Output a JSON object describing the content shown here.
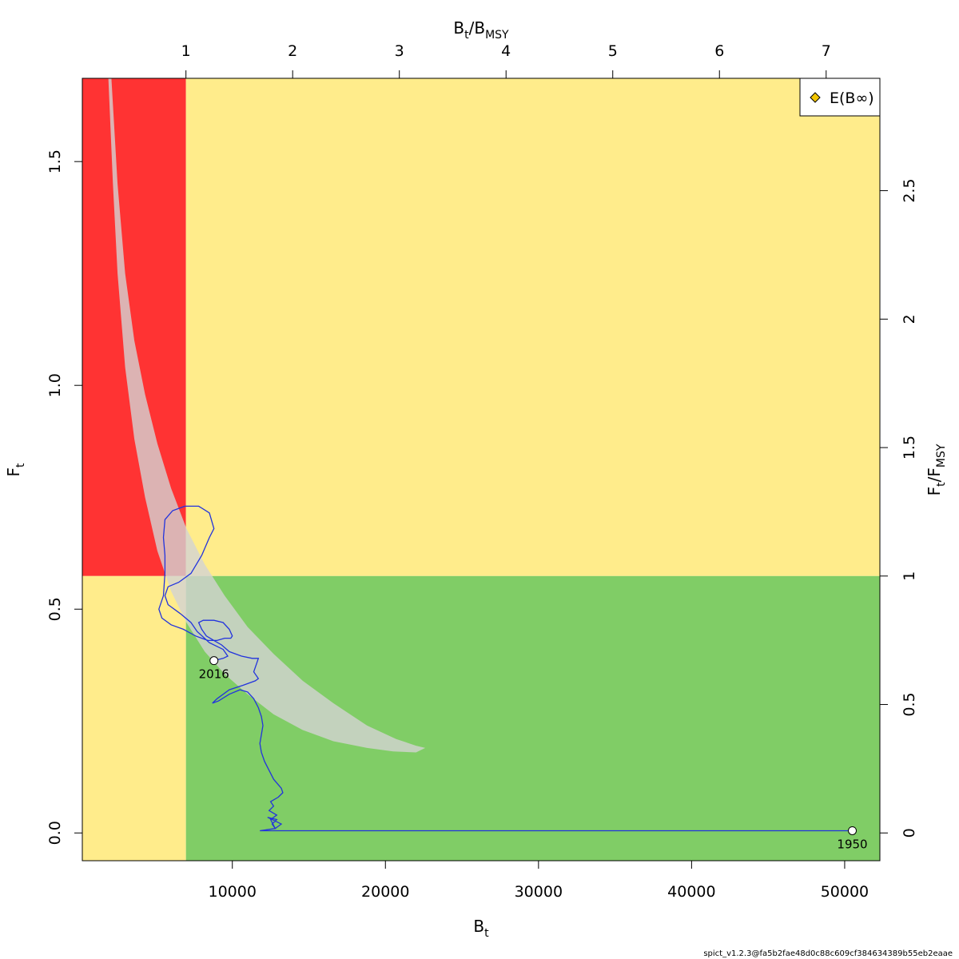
{
  "chart_data": {
    "type": "line",
    "title": "",
    "xlabel": "B_t",
    "ylabel": "F_t",
    "x_axis_label": {
      "main": "B",
      "sub": "t"
    },
    "y_axis_label": {
      "main": "F",
      "sub": "t"
    },
    "top_axis_label": {
      "main1": "B",
      "sub1": "t",
      "slash": "/",
      "main2": "B",
      "sub2": "MSY"
    },
    "right_axis_label": {
      "main1": "F",
      "sub1": "t",
      "slash": "/",
      "main2": "F",
      "sub2": "MSY"
    },
    "xlim": [
      200,
      52300
    ],
    "ylim": [
      -0.062,
      1.686
    ],
    "x_ticks": [
      10000,
      20000,
      30000,
      40000,
      50000
    ],
    "x_tick_labels": [
      "10000",
      "20000",
      "30000",
      "40000",
      "50000"
    ],
    "y_ticks": [
      0.0,
      0.5,
      1.0,
      1.5
    ],
    "y_tick_labels": [
      "0.0",
      "0.5",
      "1.0",
      "1.5"
    ],
    "bmsy": 6970,
    "fmsy": 0.574,
    "top_ticks": [
      1,
      2,
      3,
      4,
      5,
      6,
      7
    ],
    "top_tick_labels": [
      "1",
      "2",
      "3",
      "4",
      "5",
      "6",
      "7"
    ],
    "right_ticks": [
      0,
      0.5,
      1,
      1.5,
      2,
      2.5
    ],
    "right_tick_labels": [
      "0",
      "0.5",
      "1",
      "1.5",
      "2",
      "2.5"
    ],
    "grid": false,
    "legend": {
      "position": "top-right",
      "entries": [
        {
          "name": "E(B∞)",
          "marker": "diamond",
          "color": "#f2c500"
        }
      ]
    },
    "zones": {
      "red": "#ff3333",
      "yellow": "#ffec8b",
      "green": "#80cd66"
    },
    "confidence_region": {
      "color": "#d3d3d3",
      "opacity": 0.8,
      "outer": [
        [
          2100,
          1.686
        ],
        [
          2500,
          1.45
        ],
        [
          3000,
          1.25
        ],
        [
          3600,
          1.1
        ],
        [
          4300,
          0.98
        ],
        [
          5100,
          0.87
        ],
        [
          6000,
          0.77
        ],
        [
          7000,
          0.68
        ],
        [
          8200,
          0.6
        ],
        [
          9500,
          0.53
        ],
        [
          11000,
          0.46
        ],
        [
          12700,
          0.4
        ],
        [
          14600,
          0.34
        ],
        [
          16600,
          0.29
        ],
        [
          18800,
          0.24
        ],
        [
          20700,
          0.21
        ],
        [
          22000,
          0.195
        ],
        [
          22600,
          0.19
        ]
      ],
      "inner": [
        [
          22000,
          0.18
        ],
        [
          20500,
          0.182
        ],
        [
          18800,
          0.19
        ],
        [
          16600,
          0.205
        ],
        [
          14600,
          0.23
        ],
        [
          12700,
          0.265
        ],
        [
          11000,
          0.31
        ],
        [
          9500,
          0.355
        ],
        [
          8200,
          0.405
        ],
        [
          7000,
          0.47
        ],
        [
          6000,
          0.54
        ],
        [
          5100,
          0.63
        ],
        [
          4300,
          0.75
        ],
        [
          3600,
          0.88
        ],
        [
          3000,
          1.04
        ],
        [
          2500,
          1.25
        ],
        [
          2200,
          1.45
        ],
        [
          1900,
          1.686
        ]
      ]
    },
    "series": [
      {
        "color": "#2233dd",
        "x": [
          50500,
          12500,
          11800,
          12800,
          12600,
          12900,
          12300,
          13200,
          12800,
          12500,
          12900,
          12400,
          12700,
          12500,
          13000,
          13300,
          13200,
          12700,
          12400,
          12100,
          11900,
          11800,
          11900,
          12000,
          11900,
          11700,
          11400,
          11000,
          10500,
          9800,
          9100,
          8700,
          9000,
          9800,
          10700,
          11500,
          11700,
          11400,
          11600,
          11700,
          11300,
          10600,
          9800,
          9300,
          8800,
          8300,
          8000,
          7800,
          8100,
          8800,
          9400,
          9800,
          10000,
          9900,
          9500,
          9000,
          8400,
          7600,
          6800,
          6000,
          5400,
          5200,
          5500,
          5600,
          5600,
          5500,
          5600,
          6100,
          6900,
          7800,
          8500,
          8800,
          8500,
          8000,
          7300,
          6500,
          5800,
          5600,
          5800,
          6600,
          7300,
          7700,
          8500,
          9400,
          9700,
          9400,
          8800
        ],
        "y": [
          0.005,
          0.005,
          0.005,
          0.01,
          0.02,
          0.03,
          0.035,
          0.02,
          0.01,
          0.03,
          0.04,
          0.05,
          0.06,
          0.07,
          0.08,
          0.09,
          0.1,
          0.12,
          0.14,
          0.16,
          0.18,
          0.2,
          0.22,
          0.24,
          0.26,
          0.28,
          0.3,
          0.315,
          0.32,
          0.31,
          0.295,
          0.29,
          0.3,
          0.32,
          0.33,
          0.34,
          0.345,
          0.36,
          0.38,
          0.39,
          0.39,
          0.395,
          0.405,
          0.42,
          0.43,
          0.44,
          0.455,
          0.47,
          0.475,
          0.475,
          0.47,
          0.455,
          0.44,
          0.435,
          0.435,
          0.43,
          0.43,
          0.44,
          0.455,
          0.465,
          0.48,
          0.5,
          0.53,
          0.58,
          0.62,
          0.66,
          0.7,
          0.72,
          0.73,
          0.73,
          0.715,
          0.68,
          0.66,
          0.62,
          0.58,
          0.56,
          0.55,
          0.53,
          0.51,
          0.49,
          0.47,
          0.45,
          0.425,
          0.41,
          0.395,
          0.39,
          0.385
        ]
      }
    ],
    "points": [
      {
        "label": "1950",
        "x": 50500,
        "y": 0.005
      },
      {
        "label": "2016",
        "x": 8800,
        "y": 0.385
      }
    ],
    "footer": "spict_v1.2.3@fa5b2fae48d0c88c609cf384634389b55eb2eaae"
  }
}
